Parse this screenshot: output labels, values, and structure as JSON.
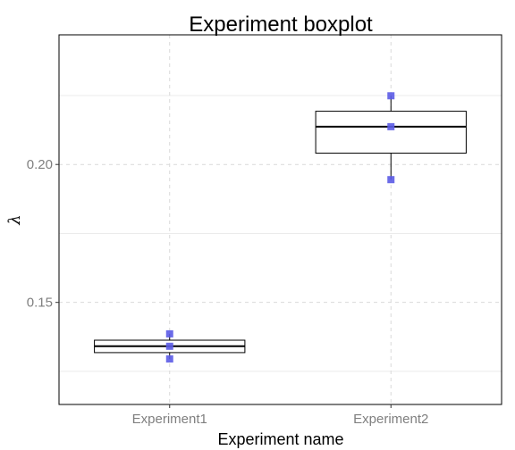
{
  "chart_data": {
    "type": "boxplot",
    "title": "Experiment boxplot",
    "xlabel": "Experiment name",
    "ylabel": "λ",
    "categories": [
      "Experiment1",
      "Experiment2"
    ],
    "ylim": [
      0.113,
      0.247
    ],
    "yticks": [
      0.15,
      0.2
    ],
    "ytick_labels": [
      "0.15",
      "0.20"
    ],
    "y_minor_gridlines": [
      0.125,
      0.175,
      0.225
    ],
    "grid": "dashed",
    "boxes": [
      {
        "category": "Experiment1",
        "q1": 0.1318,
        "median": 0.1341,
        "q3": 0.1363,
        "whisker_low": 0.1295,
        "whisker_high": 0.1386
      },
      {
        "category": "Experiment2",
        "q1": 0.2041,
        "median": 0.2137,
        "q3": 0.2193,
        "whisker_low": 0.1945,
        "whisker_high": 0.2249
      }
    ],
    "points": [
      {
        "category": "Experiment1",
        "y": 0.1386
      },
      {
        "category": "Experiment1",
        "y": 0.1341
      },
      {
        "category": "Experiment1",
        "y": 0.1295
      },
      {
        "category": "Experiment2",
        "y": 0.2249
      },
      {
        "category": "Experiment2",
        "y": 0.2137
      },
      {
        "category": "Experiment2",
        "y": 0.1945
      }
    ],
    "point_color": "#5b5be6",
    "box_fill": "#ffffff",
    "box_stroke": "#000000"
  }
}
